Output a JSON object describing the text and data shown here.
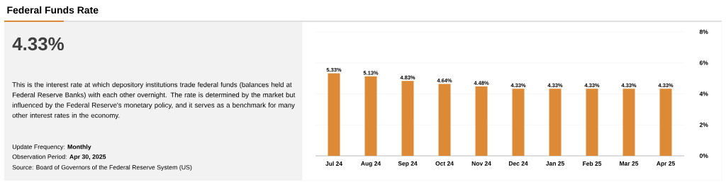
{
  "chart_data": {
    "type": "bar",
    "title": "Federal Funds Rate",
    "categories": [
      "Jul 24",
      "Aug 24",
      "Sep 24",
      "Oct 24",
      "Nov 24",
      "Dec 24",
      "Jan 25",
      "Feb 25",
      "Mar 25",
      "Apr 25"
    ],
    "values": [
      5.33,
      5.13,
      4.83,
      4.64,
      4.48,
      4.33,
      4.33,
      4.33,
      4.33,
      4.33
    ],
    "value_labels": [
      "5.33%",
      "5.13%",
      "4.83%",
      "4.64%",
      "4.48%",
      "4.33%",
      "4.33%",
      "4.33%",
      "4.33%",
      "4.33%"
    ],
    "color": "#dd8a36",
    "ylim": [
      0,
      8
    ],
    "yticks": [
      {
        "value": 0,
        "label": "0%"
      },
      {
        "value": 2,
        "label": "2%"
      },
      {
        "value": 4,
        "label": "4%"
      },
      {
        "value": 6,
        "label": "6%"
      },
      {
        "value": 8,
        "label": "8%"
      }
    ],
    "grid": "y",
    "annotations": [
      "4.33%",
      "This is the interest rate at which depository institutions trade federal funds (balances held at Federal Reserve Banks) with each other overnight. The rate is determined by the market but influenced by the Federal Reserve's monetary policy, and it serves as a benchmark for many other interest rates in the economy.",
      "Update Frequency: **Monthly**",
      "Observation Period: **Apr 30, 2025**",
      "Source: Board of Governors of the Federal Reserve System (US)"
    ]
  }
}
